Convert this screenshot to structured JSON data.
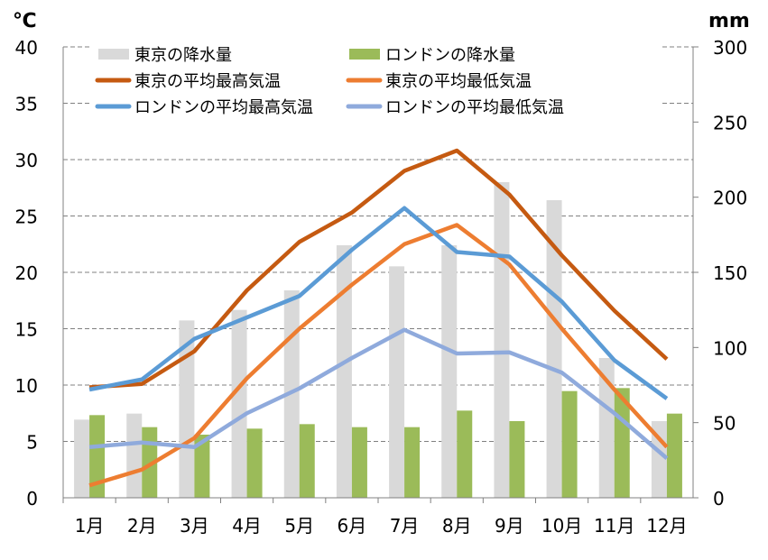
{
  "chart_data": {
    "type": "bar+line",
    "left_axis_unit": "℃",
    "right_axis_unit": "mm",
    "ylim_left": [
      0,
      40
    ],
    "ylim_right": [
      0,
      300
    ],
    "left_ticks": [
      "0",
      "5",
      "10",
      "15",
      "20",
      "25",
      "30",
      "35",
      "40"
    ],
    "right_ticks": [
      "0",
      "50",
      "100",
      "150",
      "200",
      "250",
      "300"
    ],
    "categories": [
      "1月",
      "2月",
      "3月",
      "4月",
      "5月",
      "6月",
      "7月",
      "8月",
      "9月",
      "10月",
      "11月",
      "12月"
    ],
    "grid": true,
    "legend_placement": "top",
    "bar_series": [
      {
        "name": "東京の降水量",
        "axis": "right",
        "color": "#d9d9d9",
        "values": [
          52,
          56,
          118,
          125,
          138,
          168,
          154,
          168,
          210,
          198,
          93,
          51
        ]
      },
      {
        "name": "ロンドンの降水量",
        "axis": "right",
        "color": "#9bbb59",
        "values": [
          55,
          47,
          42,
          46,
          49,
          47,
          47,
          58,
          51,
          71,
          73,
          56
        ]
      }
    ],
    "line_series": [
      {
        "name": "東京の平均最高気温",
        "axis": "left",
        "color": "#c55a11",
        "values": [
          9.8,
          10.1,
          13.0,
          18.4,
          22.7,
          25.3,
          29.0,
          30.8,
          26.9,
          21.5,
          16.6,
          12.3
        ]
      },
      {
        "name": "東京の平均最低気温",
        "axis": "left",
        "color": "#ed7d31",
        "values": [
          1.1,
          2.5,
          5.3,
          10.6,
          15.0,
          18.9,
          22.5,
          24.2,
          20.7,
          15.0,
          9.6,
          4.5
        ]
      },
      {
        "name": "ロンドンの平均最高気温",
        "axis": "left",
        "color": "#5b9bd5",
        "values": [
          9.6,
          10.5,
          14.1,
          16.0,
          17.9,
          22.0,
          25.7,
          21.8,
          21.4,
          17.4,
          12.2,
          8.8
        ]
      },
      {
        "name": "ロンドンの平均最低気温",
        "axis": "left",
        "color": "#8faadc",
        "values": [
          4.5,
          4.9,
          4.5,
          7.5,
          9.7,
          12.4,
          14.9,
          12.8,
          12.9,
          11.1,
          7.5,
          3.5
        ]
      }
    ]
  }
}
